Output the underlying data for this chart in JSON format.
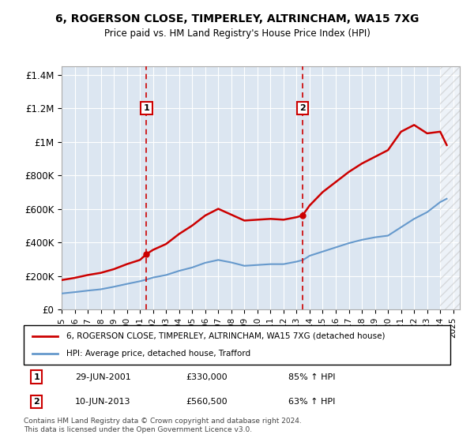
{
  "title": "6, ROGERSON CLOSE, TIMPERLEY, ALTRINCHAM, WA15 7XG",
  "subtitle": "Price paid vs. HM Land Registry's House Price Index (HPI)",
  "legend_property": "6, ROGERSON CLOSE, TIMPERLEY, ALTRINCHAM, WA15 7XG (detached house)",
  "legend_hpi": "HPI: Average price, detached house, Trafford",
  "footnote": "Contains HM Land Registry data © Crown copyright and database right 2024.\nThis data is licensed under the Open Government Licence v3.0.",
  "sale1_label": "1",
  "sale1_date": "29-JUN-2001",
  "sale1_price": "£330,000",
  "sale1_hpi": "85% ↑ HPI",
  "sale2_label": "2",
  "sale2_date": "10-JUN-2013",
  "sale2_price": "£560,500",
  "sale2_hpi": "63% ↑ HPI",
  "sale1_year": 2001.5,
  "sale1_value": 330000,
  "sale2_year": 2013.45,
  "sale2_value": 560500,
  "background_color": "#dce6f1",
  "hatch_color": "#c0c0c0",
  "property_line_color": "#cc0000",
  "hpi_line_color": "#6699cc",
  "dashed_line_color": "#cc0000",
  "ylim": [
    0,
    1450000
  ],
  "xlim_start": 1995,
  "xlim_end": 2025.5,
  "hpi_years": [
    1995,
    1996,
    1997,
    1998,
    1999,
    2000,
    2001,
    2001.5,
    2002,
    2003,
    2004,
    2005,
    2006,
    2007,
    2008,
    2009,
    2010,
    2011,
    2012,
    2013,
    2013.5,
    2014,
    2015,
    2016,
    2017,
    2018,
    2019,
    2020,
    2021,
    2022,
    2023,
    2024,
    2024.5
  ],
  "hpi_values": [
    95000,
    103000,
    112000,
    120000,
    135000,
    152000,
    168000,
    178000,
    190000,
    205000,
    230000,
    250000,
    278000,
    295000,
    280000,
    260000,
    265000,
    270000,
    270000,
    285000,
    295000,
    320000,
    345000,
    370000,
    395000,
    415000,
    430000,
    440000,
    490000,
    540000,
    580000,
    640000,
    660000
  ],
  "property_years": [
    1995,
    1996,
    1997,
    1998,
    1999,
    2000,
    2001,
    2001.5,
    2002,
    2003,
    2004,
    2005,
    2006,
    2007,
    2008,
    2009,
    2010,
    2011,
    2012,
    2013,
    2013.45,
    2014,
    2015,
    2016,
    2017,
    2018,
    2019,
    2020,
    2021,
    2022,
    2023,
    2024,
    2024.5
  ],
  "property_values": [
    175000,
    188000,
    205000,
    218000,
    240000,
    270000,
    295000,
    330000,
    355000,
    390000,
    450000,
    500000,
    560000,
    600000,
    565000,
    530000,
    535000,
    540000,
    535000,
    550000,
    560500,
    620000,
    700000,
    760000,
    820000,
    870000,
    910000,
    950000,
    1060000,
    1100000,
    1050000,
    1060000,
    980000
  ],
  "yticks": [
    0,
    200000,
    400000,
    600000,
    800000,
    1000000,
    1200000,
    1400000
  ],
  "ytick_labels": [
    "£0",
    "£200K",
    "£400K",
    "£600K",
    "£800K",
    "£1M",
    "£1.2M",
    "£1.4M"
  ],
  "xticks": [
    1995,
    1996,
    1997,
    1998,
    1999,
    2000,
    2001,
    2002,
    2003,
    2004,
    2005,
    2006,
    2007,
    2008,
    2009,
    2010,
    2011,
    2012,
    2013,
    2014,
    2015,
    2016,
    2017,
    2018,
    2019,
    2020,
    2021,
    2022,
    2023,
    2024,
    2025
  ]
}
